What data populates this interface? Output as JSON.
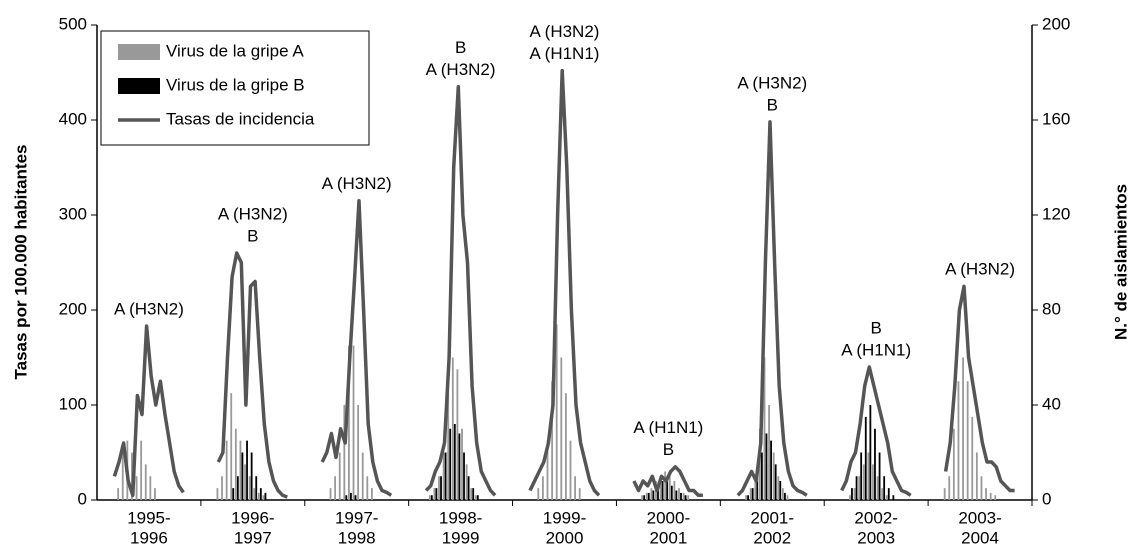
{
  "chart_data": {
    "type": "bar-line",
    "categories": [
      [
        "1995-",
        "1996"
      ],
      [
        "1996-",
        "1997"
      ],
      [
        "1997-",
        "1998"
      ],
      [
        "1998-",
        "1999"
      ],
      [
        "1999-",
        "2000"
      ],
      [
        "2000-",
        "2001"
      ],
      [
        "2001-",
        "2002"
      ],
      [
        "2002-",
        "2003"
      ],
      [
        "2003-",
        "2004"
      ]
    ],
    "annotations": [
      [
        "A (H3N2)"
      ],
      [
        "A (H3N2)",
        "B"
      ],
      [
        "A (H3N2)"
      ],
      [
        "B",
        "A (H3N2)"
      ],
      [
        "A (H3N2)",
        "A (H1N1)"
      ],
      [
        "A (H1N1)",
        "B"
      ],
      [
        "A (H3N2)",
        "B"
      ],
      [
        "B",
        "A (H1N1)"
      ],
      [
        "A (H3N2)"
      ]
    ],
    "ylabel": "Tasas por 100.000 habitantes",
    "y2label": "N.° de aislamientos",
    "ylim": [
      0,
      500
    ],
    "yticks": [
      0,
      100,
      200,
      300,
      400,
      500
    ],
    "y2lim": [
      0,
      200
    ],
    "y2ticks": [
      0,
      40,
      80,
      120,
      160,
      200
    ],
    "legend": "upper-left",
    "series": [
      {
        "name": "Virus de la gripe A",
        "type": "bar",
        "axis": "y2",
        "color": "#999999",
        "values": [
          [
            0,
            5,
            20,
            25,
            20,
            10,
            25,
            15,
            10,
            5,
            0,
            0,
            0,
            0,
            0,
            0
          ],
          [
            5,
            10,
            25,
            45,
            30,
            25,
            15,
            10,
            5,
            3,
            2,
            0,
            0,
            0,
            0,
            0
          ],
          [
            0,
            0,
            5,
            10,
            20,
            40,
            65,
            65,
            40,
            20,
            10,
            5,
            0,
            0,
            0,
            0
          ],
          [
            0,
            2,
            5,
            10,
            20,
            45,
            60,
            55,
            30,
            15,
            5,
            2,
            0,
            0,
            0,
            0
          ],
          [
            0,
            0,
            5,
            10,
            25,
            50,
            74,
            60,
            45,
            25,
            10,
            5,
            0,
            0,
            0,
            0
          ],
          [
            0,
            0,
            2,
            3,
            5,
            8,
            10,
            12,
            10,
            8,
            5,
            3,
            2,
            0,
            0,
            0
          ],
          [
            0,
            0,
            2,
            5,
            10,
            30,
            60,
            40,
            20,
            10,
            5,
            2,
            0,
            0,
            0,
            0
          ],
          [
            0,
            0,
            2,
            5,
            10,
            15,
            20,
            15,
            10,
            5,
            2,
            0,
            0,
            0,
            0,
            0
          ],
          [
            5,
            10,
            30,
            50,
            60,
            50,
            35,
            20,
            10,
            5,
            3,
            2,
            0,
            0,
            0,
            0
          ]
        ]
      },
      {
        "name": "Virus de la gripe B",
        "type": "bar",
        "axis": "y2",
        "color": "#000000",
        "values": [
          [
            0,
            0,
            0,
            0,
            0,
            0,
            0,
            0,
            0,
            0,
            0,
            0,
            0,
            0,
            0,
            0
          ],
          [
            0,
            0,
            0,
            5,
            10,
            20,
            25,
            20,
            10,
            5,
            3,
            0,
            0,
            0,
            0,
            0
          ],
          [
            0,
            0,
            0,
            0,
            0,
            2,
            3,
            2,
            0,
            0,
            0,
            0,
            0,
            0,
            0,
            0
          ],
          [
            0,
            2,
            5,
            10,
            20,
            30,
            32,
            28,
            20,
            10,
            5,
            2,
            0,
            0,
            0,
            0
          ],
          [
            0,
            0,
            0,
            0,
            0,
            0,
            0,
            0,
            0,
            0,
            0,
            0,
            0,
            0,
            0,
            0
          ],
          [
            0,
            0,
            2,
            3,
            4,
            6,
            8,
            8,
            6,
            4,
            3,
            2,
            0,
            0,
            0,
            0
          ],
          [
            0,
            0,
            2,
            5,
            10,
            20,
            28,
            25,
            15,
            8,
            3,
            0,
            0,
            0,
            0,
            0
          ],
          [
            0,
            0,
            5,
            10,
            20,
            35,
            40,
            30,
            20,
            10,
            5,
            2,
            0,
            0,
            0,
            0
          ],
          [
            0,
            0,
            0,
            0,
            0,
            0,
            0,
            0,
            0,
            0,
            0,
            0,
            0,
            0,
            0,
            0
          ]
        ]
      },
      {
        "name": "Tasas de incidencia",
        "type": "line",
        "axis": "y",
        "color": "#555555",
        "values": [
          [
            25,
            40,
            60,
            20,
            5,
            110,
            90,
            183,
            130,
            100,
            125,
            90,
            60,
            30,
            15,
            8
          ],
          [
            40,
            50,
            150,
            235,
            260,
            250,
            100,
            225,
            230,
            150,
            80,
            40,
            20,
            10,
            5,
            3
          ],
          [
            40,
            50,
            70,
            45,
            75,
            60,
            150,
            230,
            315,
            200,
            80,
            40,
            20,
            10,
            8,
            5
          ],
          [
            10,
            15,
            30,
            40,
            60,
            150,
            350,
            435,
            300,
            250,
            120,
            60,
            30,
            20,
            10,
            5
          ],
          [
            10,
            20,
            30,
            40,
            60,
            100,
            300,
            452,
            350,
            200,
            100,
            60,
            40,
            20,
            10,
            5
          ],
          [
            20,
            10,
            20,
            15,
            25,
            10,
            25,
            20,
            30,
            35,
            30,
            20,
            10,
            10,
            5,
            5
          ],
          [
            5,
            10,
            20,
            30,
            20,
            60,
            250,
            398,
            250,
            120,
            60,
            30,
            15,
            10,
            8,
            5
          ],
          [
            10,
            20,
            40,
            50,
            80,
            120,
            140,
            120,
            100,
            80,
            60,
            30,
            20,
            10,
            8,
            5
          ],
          [
            30,
            60,
            120,
            200,
            225,
            150,
            120,
            90,
            60,
            40,
            40,
            35,
            20,
            15,
            10,
            10
          ]
        ]
      }
    ]
  }
}
